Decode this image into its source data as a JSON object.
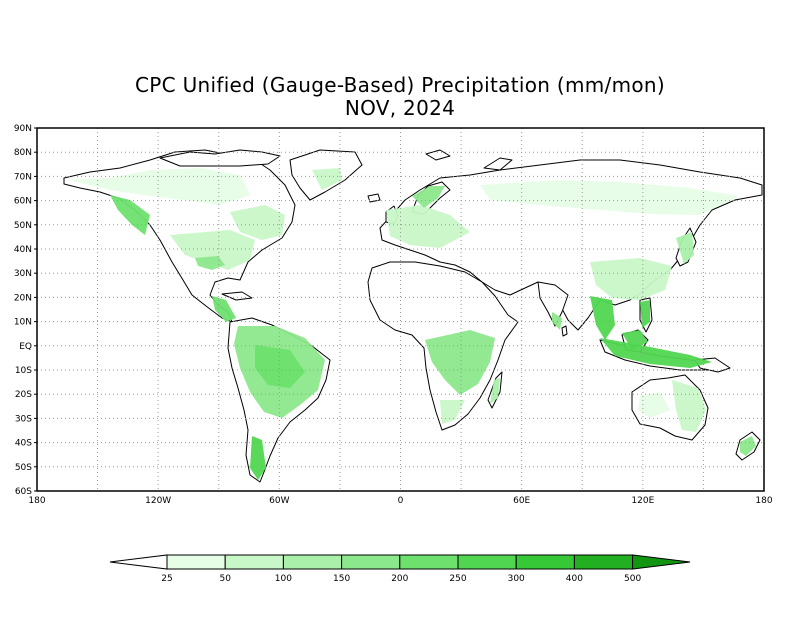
{
  "title": {
    "line1": "CPC Unified (Gauge-Based) Precipitation (mm/mon)",
    "line2": "NOV, 2024"
  },
  "map": {
    "lat_labels": [
      "90N",
      "80N",
      "70N",
      "60N",
      "50N",
      "40N",
      "30N",
      "20N",
      "10N",
      "EQ",
      "10S",
      "20S",
      "30S",
      "40S",
      "50S",
      "60S"
    ],
    "lon_labels": [
      "180",
      "120W",
      "60W",
      "0",
      "60E",
      "120E",
      "180"
    ],
    "colors": {
      "ocean": "#ffffff",
      "coastline": "#000000",
      "grid": "#9a9a9a"
    }
  },
  "colorbar": {
    "labels": [
      "25",
      "50",
      "100",
      "150",
      "200",
      "250",
      "300",
      "400",
      "500"
    ],
    "colors": [
      "#ffffff",
      "#e6fde6",
      "#c8f7c8",
      "#aaf0aa",
      "#8ce88c",
      "#6de06d",
      "#50d650",
      "#36c836",
      "#22b022",
      "#129612"
    ]
  },
  "precip_regions": [
    {
      "name": "pacific-northwest",
      "level": 5
    },
    {
      "name": "southeast-us",
      "level": 3
    },
    {
      "name": "central-america",
      "level": 5
    },
    {
      "name": "amazon",
      "level": 5
    },
    {
      "name": "southern-chile",
      "level": 6
    },
    {
      "name": "central-africa",
      "level": 4
    },
    {
      "name": "southeast-asia",
      "level": 6
    },
    {
      "name": "indonesia",
      "level": 6
    },
    {
      "name": "philippines",
      "level": 6
    },
    {
      "name": "eastern-australia",
      "level": 2
    },
    {
      "name": "europe",
      "level": 2
    },
    {
      "name": "siberia",
      "level": 1
    }
  ]
}
